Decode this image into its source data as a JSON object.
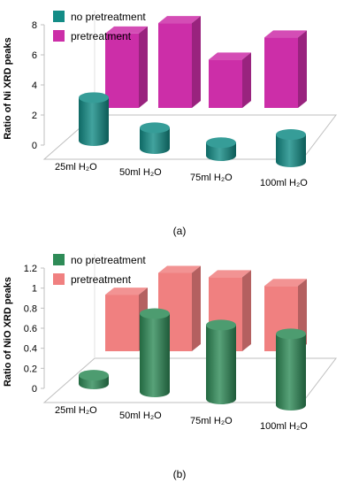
{
  "chart_data": [
    {
      "type": "bar",
      "panel_label": "(a)",
      "ylabel": "Ratio of Ni XRD peaks",
      "ylim": [
        0,
        8
      ],
      "yticks": [
        "0",
        "2",
        "4",
        "6",
        "8"
      ],
      "yticks_values": [
        0,
        2,
        4,
        6,
        8
      ],
      "categories": [
        "25ml H₂O",
        "50ml H₂O",
        "75ml H₂O",
        "100ml H₂O"
      ],
      "legend_placement": "top-left",
      "grid": false,
      "series": [
        {
          "name": "no pretreatment",
          "shape": "cylinder",
          "color": "#138C86",
          "values": [
            3.3,
            1.6,
            1.0,
            2.1
          ]
        },
        {
          "name": "pretreatment",
          "shape": "box",
          "color": "#CC2EA8",
          "values": [
            5.7,
            6.5,
            3.7,
            5.4
          ]
        }
      ]
    },
    {
      "type": "bar",
      "panel_label": "(b)",
      "ylabel": "Ratio of NiO XRD peaks",
      "ylim": [
        0,
        1.2
      ],
      "yticks": [
        "0",
        "0.2",
        "0.4",
        "0.6",
        "0.8",
        "1",
        "1.2"
      ],
      "yticks_values": [
        0,
        0.2,
        0.4,
        0.6,
        0.8,
        1,
        1.2
      ],
      "categories": [
        "25ml H₂O",
        "50ml H₂O",
        "75ml H₂O",
        "100ml H₂O"
      ],
      "legend_placement": "top-left",
      "grid": false,
      "series": [
        {
          "name": "no pretreatment",
          "shape": "cylinder",
          "color": "#2E8B57",
          "values": [
            0.1,
            0.9,
            0.85,
            0.82
          ]
        },
        {
          "name": "pretreatment",
          "shape": "box",
          "color": "#F08080",
          "values": [
            0.65,
            0.9,
            0.85,
            0.75
          ]
        }
      ]
    }
  ]
}
